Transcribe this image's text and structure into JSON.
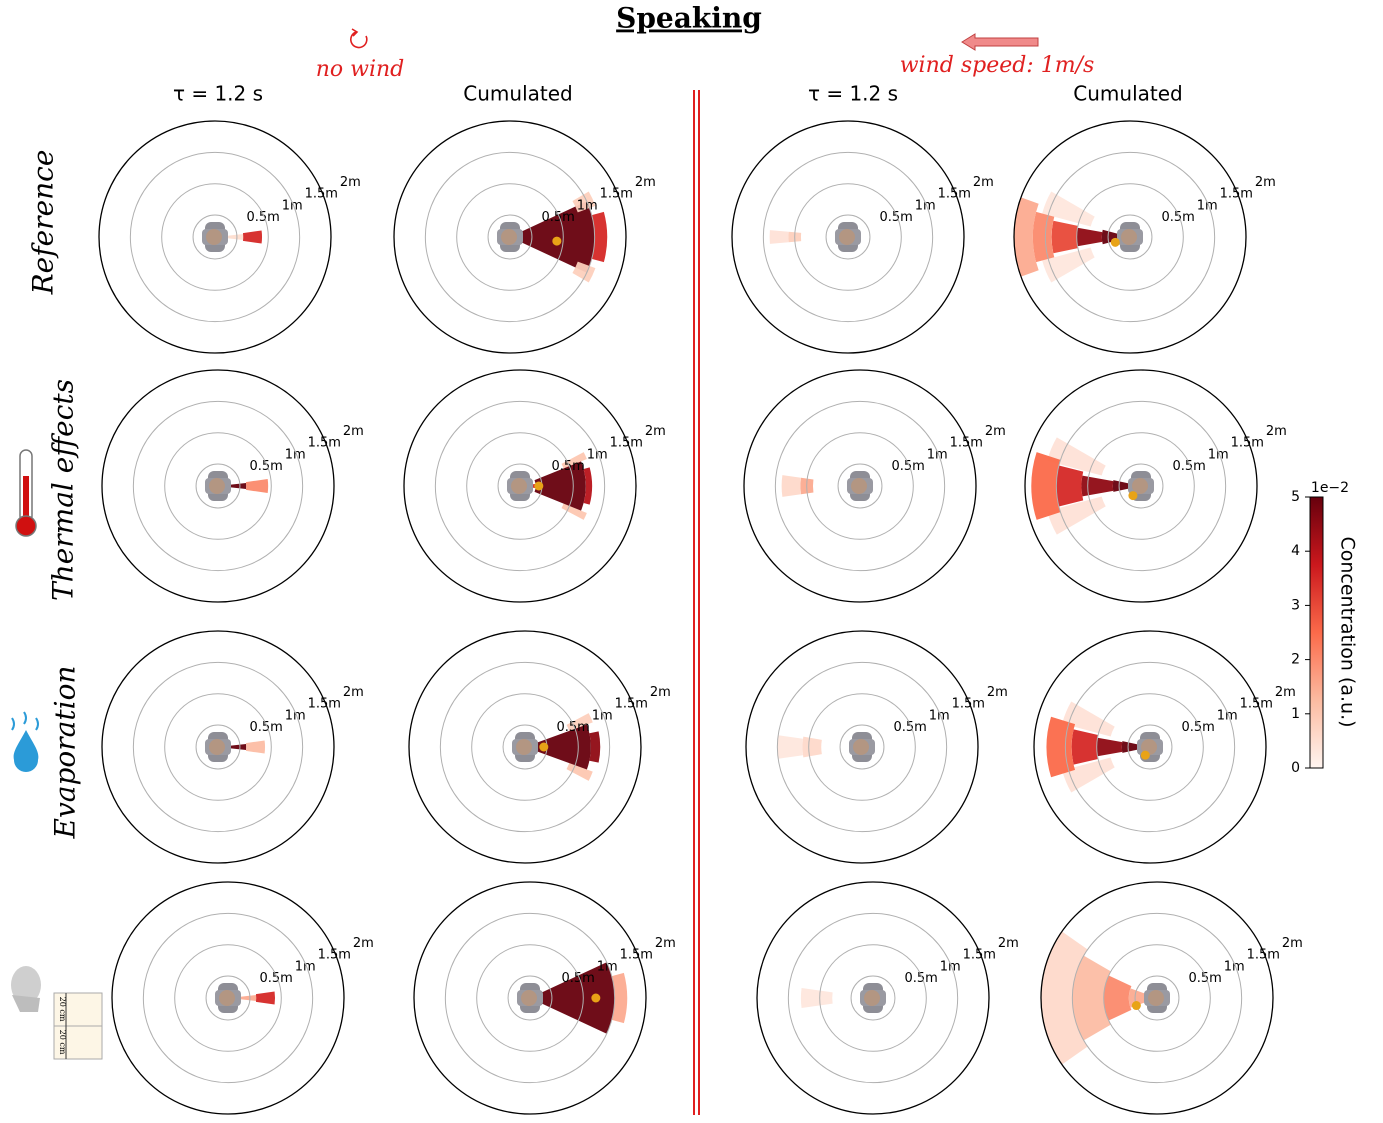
{
  "chart_data": {
    "type": "polar",
    "title": "Speaking",
    "conditions": [
      "no wind",
      "wind speed: 1m/s"
    ],
    "column_labels": [
      "τ = 1.2 s",
      "Cumulated",
      "τ = 1.2 s",
      "Cumulated"
    ],
    "row_labels": [
      "Reference",
      "Thermal effects",
      "Evaporation",
      null
    ],
    "scale_labels": [
      "20 cm",
      "20 cm"
    ],
    "rlim": [
      0.15,
      2
    ],
    "rticks": [
      {
        "value": 0.5,
        "label": "0.5m"
      },
      {
        "value": 1,
        "label": "1m"
      },
      {
        "value": 1.5,
        "label": "1.5m"
      },
      {
        "value": 2,
        "label": "2m"
      }
    ],
    "colorbar": {
      "label": "Concentration (a.u.)",
      "multiplier": "1e−2",
      "lim": [
        0,
        5
      ],
      "ticks": [
        0,
        1,
        2,
        3,
        4,
        5
      ]
    },
    "panels": [
      {
        "wedges": [
          {
            "r": [
              0.35,
              0.6
            ],
            "theta": [
              -6,
              6
            ],
            "value": 0.5
          },
          {
            "r": [
              0.6,
              0.9
            ],
            "theta": [
              -8,
              8
            ],
            "value": 3.5
          }
        ]
      },
      {
        "wedges": [
          {
            "r": [
              0.2,
              1.5
            ],
            "theta": [
              -25,
              25
            ],
            "value": 5
          },
          {
            "r": [
              1.5,
              1.7
            ],
            "theta": [
              -15,
              15
            ],
            "value": 3.5
          },
          {
            "r": [
              1.3,
              1.6
            ],
            "theta": [
              20,
              30
            ],
            "value": 0.8
          },
          {
            "r": [
              1.3,
              1.6
            ],
            "theta": [
              -30,
              -20
            ],
            "value": 0.8
          }
        ],
        "centroid": {
          "r": 0.9,
          "theta": -5
        }
      },
      {
        "wedges": [
          {
            "r": [
              0.9,
              1.1
            ],
            "theta": [
              175,
              185
            ],
            "value": 0.8
          },
          {
            "r": [
              1.1,
              1.4
            ],
            "theta": [
              175,
              185
            ],
            "value": 0.4
          }
        ]
      },
      {
        "wedges": [
          {
            "r": [
              0.8,
              1.6
            ],
            "theta": [
              150,
              165
            ],
            "value": 0.3
          },
          {
            "r": [
              0.8,
              1.6
            ],
            "theta": [
              195,
              210
            ],
            "value": 0.3
          },
          {
            "r": [
              0.2,
              0.6
            ],
            "theta": [
              165,
              195
            ],
            "value": 5
          },
          {
            "r": [
              0.6,
              1.0
            ],
            "theta": [
              170,
              190
            ],
            "value": 4.5
          },
          {
            "r": [
              1.0,
              1.4
            ],
            "theta": [
              168,
              192
            ],
            "value": 3
          },
          {
            "r": [
              1.4,
              1.7
            ],
            "theta": [
              165,
              195
            ],
            "value": 2
          },
          {
            "r": [
              1.7,
              2.0
            ],
            "theta": [
              160,
              200
            ],
            "value": 1.5
          }
        ],
        "centroid": {
          "r": 0.4,
          "theta": 200
        }
      },
      {
        "wedges": [
          {
            "r": [
              0.3,
              0.6
            ],
            "theta": [
              -6,
              6
            ],
            "value": 5
          },
          {
            "r": [
              0.6,
              0.95
            ],
            "theta": [
              -8,
              8
            ],
            "value": 2
          }
        ]
      },
      {
        "wedges": [
          {
            "r": [
              0.9,
              1.3
            ],
            "theta": [
              22,
              28
            ],
            "value": 1
          },
          {
            "r": [
              0.9,
              1.3
            ],
            "theta": [
              -28,
              -22
            ],
            "value": 1
          },
          {
            "r": [
              0.2,
              0.4
            ],
            "theta": [
              -8,
              8
            ],
            "value": 3.5
          },
          {
            "r": [
              0.4,
              1.2
            ],
            "theta": [
              -22,
              22
            ],
            "value": 5
          },
          {
            "r": [
              1.2,
              1.3
            ],
            "theta": [
              -15,
              15
            ],
            "value": 4
          }
        ],
        "centroid": {
          "r": 0.45,
          "theta": 0
        }
      },
      {
        "wedges": [
          {
            "r": [
              0.9,
              1.1
            ],
            "theta": [
              172,
              188
            ],
            "value": 1.5
          },
          {
            "r": [
              1.1,
              1.4
            ],
            "theta": [
              172,
              188
            ],
            "value": 0.6
          }
        ]
      },
      {
        "wedges": [
          {
            "r": [
              0.8,
              1.7
            ],
            "theta": [
              150,
              165
            ],
            "value": 0.4
          },
          {
            "r": [
              0.8,
              1.7
            ],
            "theta": [
              195,
              210
            ],
            "value": 0.4
          },
          {
            "r": [
              0.2,
              0.6
            ],
            "theta": [
              168,
              192
            ],
            "value": 5
          },
          {
            "r": [
              0.6,
              1.1
            ],
            "theta": [
              170,
              190
            ],
            "value": 4.5
          },
          {
            "r": [
              1.1,
              1.5
            ],
            "theta": [
              166,
              194
            ],
            "value": 3.5
          },
          {
            "r": [
              1.5,
              1.9
            ],
            "theta": [
              162,
              198
            ],
            "value": 2.5
          }
        ],
        "centroid": {
          "r": 0.35,
          "theta": 230
        }
      },
      {
        "wedges": [
          {
            "r": [
              0.3,
              0.6
            ],
            "theta": [
              -6,
              6
            ],
            "value": 5
          },
          {
            "r": [
              0.6,
              0.9
            ],
            "theta": [
              -8,
              8
            ],
            "value": 1.2
          }
        ]
      },
      {
        "wedges": [
          {
            "r": [
              0.9,
              1.3
            ],
            "theta": [
              -28,
              -20
            ],
            "value": 1
          },
          {
            "r": [
              0.9,
              1.3
            ],
            "theta": [
              20,
              28
            ],
            "value": 0.8
          },
          {
            "r": [
              0.3,
              1.2
            ],
            "theta": [
              -20,
              20
            ],
            "value": 5
          },
          {
            "r": [
              1.2,
              1.35
            ],
            "theta": [
              -12,
              12
            ],
            "value": 4.5
          }
        ],
        "centroid": {
          "r": 0.45,
          "theta": 0
        }
      },
      {
        "wedges": [
          {
            "r": [
              0.8,
              1.1
            ],
            "theta": [
              170,
              190
            ],
            "value": 0.6
          },
          {
            "r": [
              1.1,
              1.5
            ],
            "theta": [
              172,
              188
            ],
            "value": 0.3
          }
        ]
      },
      {
        "wedges": [
          {
            "r": [
              0.8,
              1.6
            ],
            "theta": [
              150,
              165
            ],
            "value": 0.4
          },
          {
            "r": [
              0.8,
              1.6
            ],
            "theta": [
              195,
              210
            ],
            "value": 0.4
          },
          {
            "r": [
              0.2,
              0.6
            ],
            "theta": [
              168,
              192
            ],
            "value": 5
          },
          {
            "r": [
              0.6,
              1.0
            ],
            "theta": [
              170,
              190
            ],
            "value": 4.5
          },
          {
            "r": [
              1.0,
              1.4
            ],
            "theta": [
              167,
              193
            ],
            "value": 3.5
          },
          {
            "r": [
              1.4,
              1.8
            ],
            "theta": [
              163,
              197
            ],
            "value": 2.5
          }
        ],
        "centroid": {
          "r": 0.3,
          "theta": 240
        }
      },
      {
        "wedges": [
          {
            "r": [
              0.35,
              0.6
            ],
            "theta": [
              -6,
              6
            ],
            "value": 1.5
          },
          {
            "r": [
              0.6,
              0.9
            ],
            "theta": [
              -8,
              8
            ],
            "value": 3.5
          }
        ]
      },
      {
        "wedges": [
          {
            "r": [
              0.2,
              1.5
            ],
            "theta": [
              -25,
              25
            ],
            "value": 5
          },
          {
            "r": [
              1.5,
              1.7
            ],
            "theta": [
              -15,
              15
            ],
            "value": 1.5
          }
        ],
        "centroid": {
          "r": 1.2,
          "theta": 0
        }
      },
      {
        "wedges": [
          {
            "r": [
              0.8,
              1.3
            ],
            "theta": [
              172,
              188
            ],
            "value": 0.3
          }
        ]
      },
      {
        "wedges": [
          {
            "r": [
              1.5,
              2.0
            ],
            "theta": [
              145,
              215
            ],
            "value": 0.6
          },
          {
            "r": [
              1.0,
              1.5
            ],
            "theta": [
              150,
              210
            ],
            "value": 1.2
          },
          {
            "r": [
              0.6,
              1.0
            ],
            "theta": [
              155,
              205
            ],
            "value": 2
          },
          {
            "r": [
              0.2,
              0.6
            ],
            "theta": [
              160,
              200
            ],
            "value": 1.5
          }
        ],
        "centroid": {
          "r": 0.5,
          "theta": 200
        }
      }
    ]
  }
}
